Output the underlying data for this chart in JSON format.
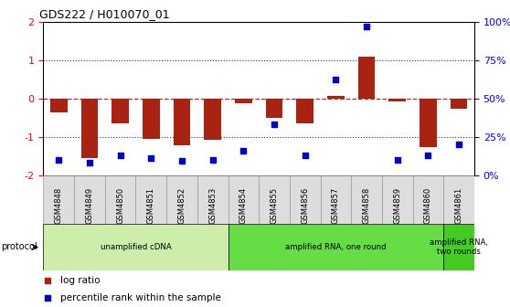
{
  "title": "GDS222 / H010070_01",
  "samples": [
    "GSM4848",
    "GSM4849",
    "GSM4850",
    "GSM4851",
    "GSM4852",
    "GSM4853",
    "GSM4854",
    "GSM4855",
    "GSM4856",
    "GSM4857",
    "GSM4858",
    "GSM4859",
    "GSM4860",
    "GSM4861"
  ],
  "log_ratio": [
    -0.38,
    -1.55,
    -0.65,
    -1.05,
    -1.22,
    -1.08,
    -0.13,
    -0.52,
    -0.65,
    0.07,
    1.08,
    -0.08,
    -1.28,
    -0.28
  ],
  "percentile": [
    10,
    8,
    13,
    11,
    9,
    10,
    16,
    33,
    13,
    62,
    97,
    10,
    13,
    20
  ],
  "ylim_left": [
    -2,
    2
  ],
  "ylim_right": [
    0,
    100
  ],
  "bar_color": "#aa2211",
  "dot_color": "#0000cc",
  "hline_color": "#cc2222",
  "dotted_color": "#333333",
  "protocol_groups": [
    {
      "label": "unamplified cDNA",
      "start": 0,
      "end": 5,
      "color": "#cceeaa"
    },
    {
      "label": "amplified RNA, one round",
      "start": 6,
      "end": 12,
      "color": "#66dd44"
    },
    {
      "label": "amplified RNA,\ntwo rounds",
      "start": 13,
      "end": 13,
      "color": "#44cc22"
    }
  ],
  "right_tick_labels": [
    "0%",
    "25%",
    "50%",
    "75%",
    "100%"
  ],
  "right_ticks": [
    0,
    25,
    50,
    75,
    100
  ]
}
